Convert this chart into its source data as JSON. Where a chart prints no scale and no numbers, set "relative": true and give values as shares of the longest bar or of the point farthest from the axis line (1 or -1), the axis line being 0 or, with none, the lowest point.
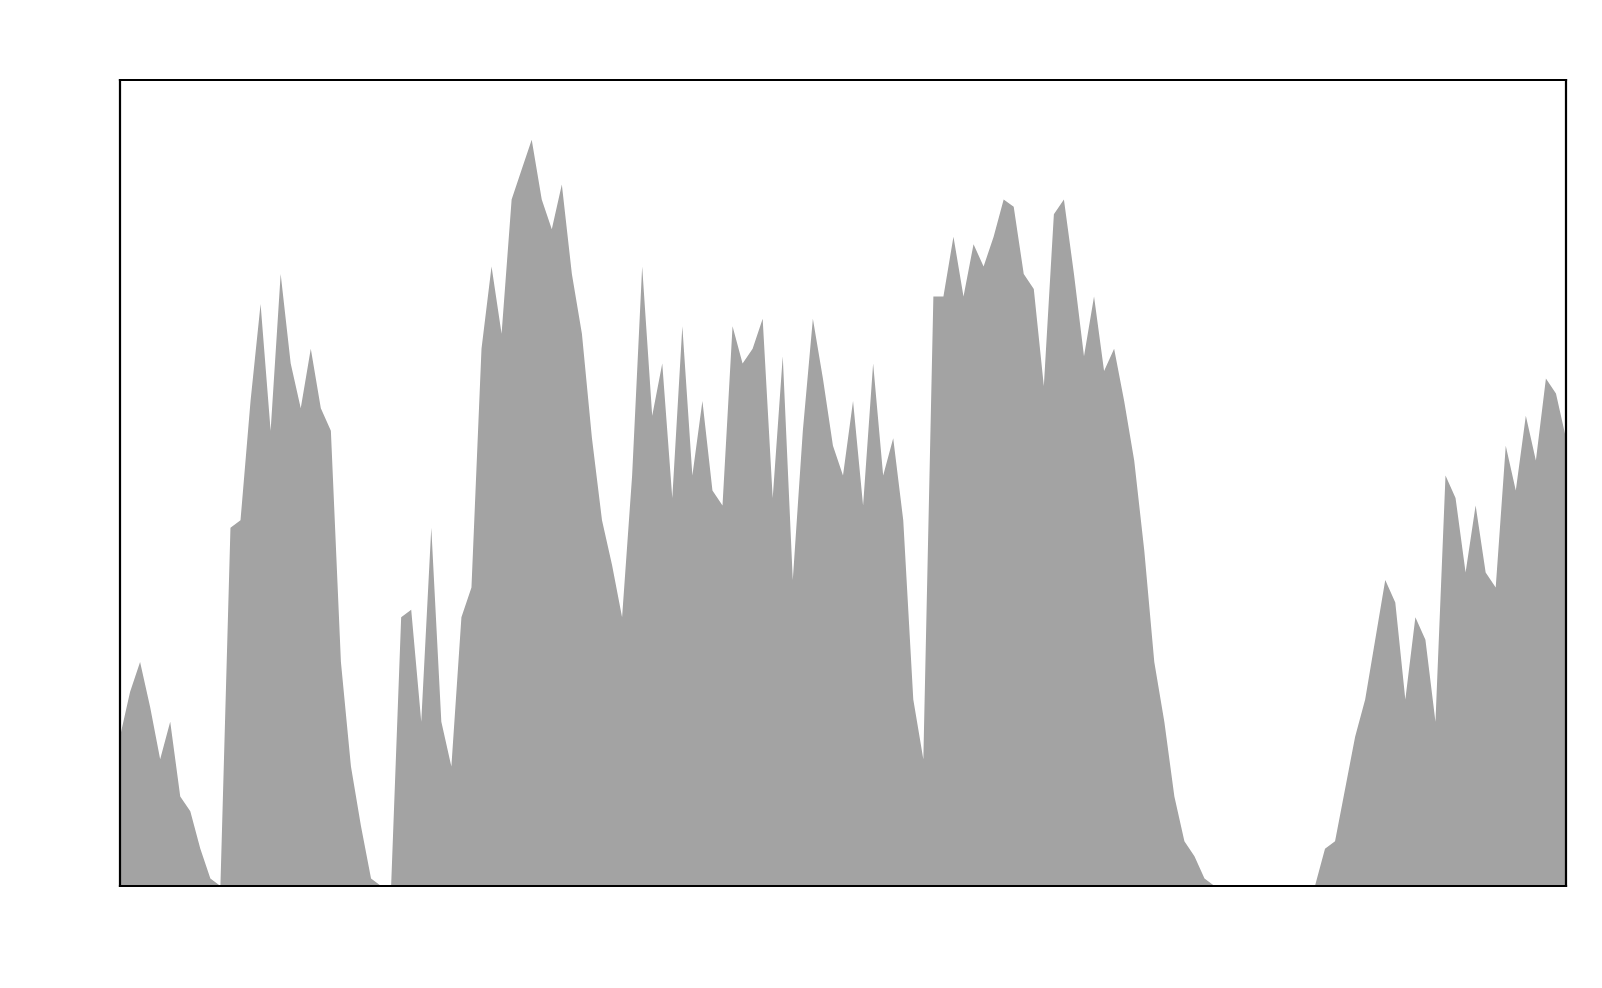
{
  "chart_data": {
    "type": "area",
    "relative": true,
    "color": "#a3a3a3",
    "categories": [
      null,
      null,
      null,
      null,
      null,
      null,
      null,
      null,
      null,
      null,
      null,
      null,
      null,
      null,
      null,
      null,
      null,
      null,
      null,
      null,
      null,
      null,
      null,
      null,
      null,
      null,
      null,
      null,
      null,
      null,
      null,
      null,
      null,
      null,
      null,
      null,
      null,
      null,
      null,
      null,
      null,
      null,
      null,
      null,
      null,
      null,
      null,
      null,
      null,
      null,
      null,
      null,
      null,
      null,
      null,
      null,
      null,
      null,
      null,
      null,
      null,
      null,
      null,
      null,
      null,
      null,
      null,
      null,
      null,
      null,
      null,
      null,
      null,
      null,
      null,
      null,
      null,
      null,
      null,
      null,
      null,
      null,
      null,
      null,
      null,
      null,
      null,
      null,
      null,
      null,
      null,
      null,
      null,
      null,
      null,
      null,
      null,
      null,
      null,
      null,
      null,
      null,
      null,
      null,
      null,
      null,
      null,
      null,
      null,
      null,
      null,
      null,
      null,
      null,
      null,
      null,
      null,
      null,
      null,
      null,
      null,
      null,
      null,
      null,
      null,
      null,
      null,
      null,
      null,
      null,
      null,
      null,
      null,
      null,
      null,
      null,
      null,
      null,
      null,
      null,
      null,
      null,
      null,
      null,
      null
    ],
    "values": [
      0.2,
      0.26,
      0.3,
      0.24,
      0.17,
      0.22,
      0.12,
      0.1,
      0.05,
      0.01,
      0,
      0.48,
      0.49,
      0.65,
      0.78,
      0.61,
      0.82,
      0.7,
      0.64,
      0.72,
      0.64,
      0.61,
      0.3,
      0.16,
      0.08,
      0.01,
      0,
      0,
      0.36,
      0.37,
      0.22,
      0.48,
      0.22,
      0.16,
      0.36,
      0.4,
      0.72,
      0.83,
      0.74,
      0.92,
      0.96,
      1.0,
      0.92,
      0.88,
      0.94,
      0.82,
      0.74,
      0.6,
      0.49,
      0.43,
      0.36,
      0.55,
      0.83,
      0.63,
      0.7,
      0.52,
      0.75,
      0.55,
      0.65,
      0.53,
      0.51,
      0.75,
      0.7,
      0.72,
      0.76,
      0.52,
      0.71,
      0.41,
      0.61,
      0.76,
      0.68,
      0.59,
      0.55,
      0.65,
      0.51,
      0.7,
      0.55,
      0.6,
      0.49,
      0.25,
      0.17,
      0.79,
      0.79,
      0.87,
      0.79,
      0.86,
      0.83,
      0.87,
      0.92,
      0.91,
      0.82,
      0.8,
      0.67,
      0.9,
      0.92,
      0.82,
      0.71,
      0.79,
      0.69,
      0.72,
      0.65,
      0.57,
      0.45,
      0.3,
      0.22,
      0.12,
      0.06,
      0.04,
      0.01,
      0,
      0,
      0,
      0,
      0,
      0,
      0,
      0,
      0,
      0,
      0,
      0.05,
      0.06,
      0.13,
      0.2,
      0.25,
      0.33,
      0.41,
      0.38,
      0.25,
      0.36,
      0.33,
      0.22,
      0.55,
      0.52,
      0.42,
      0.51,
      0.42,
      0.4,
      0.59,
      0.53,
      0.63,
      0.57,
      0.68,
      0.66,
      0.6
    ]
  }
}
